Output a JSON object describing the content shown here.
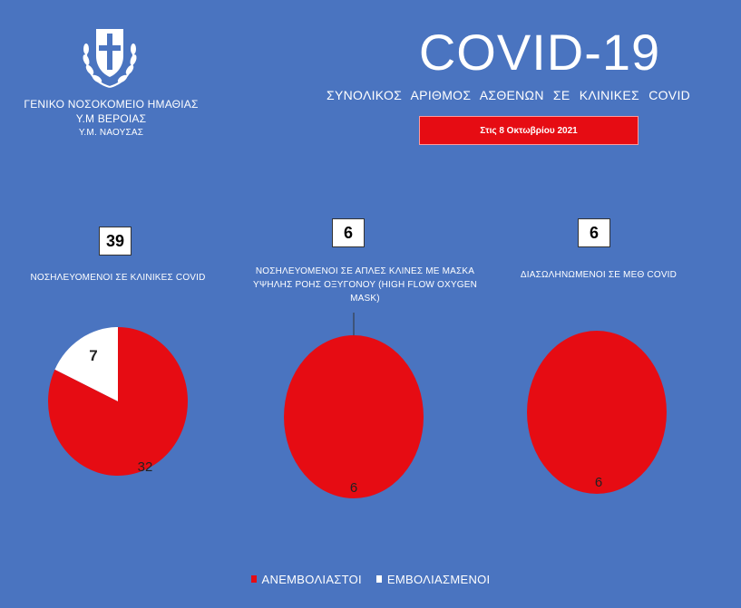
{
  "header": {
    "hospital_line1": "ΓΕΝΙΚΟ ΝΟΣΟΚΟΜΕΙΟ ΗΜΑΘΙΑΣ",
    "hospital_line2": "Υ.Μ ΒΕΡΟΙΑΣ",
    "hospital_line3": "Υ.Μ. ΝΑΟΥΣΑΣ",
    "title": "COVID-19",
    "subtitle": "ΣΥΝΟΛΙΚΟΣ ΑΡΙΘΜΟΣ ΑΣΘΕΝΩΝ   ΣΕ ΚΛΙΝΙΚΕΣ COVID",
    "date": "Στις 8 Οκτωβρίου 2021"
  },
  "colors": {
    "background": "#4a74c0",
    "unvaccinated": "#e60c13",
    "vaccinated": "#ffffff"
  },
  "emblem_icon": "greek-coat-of-arms-icon",
  "chart_data": [
    {
      "type": "pie",
      "total": "39",
      "label": "ΝΟΣΗΛΕΥΟΜΕΝΟΙ ΣΕ ΚΛΙΝΙΚΕΣ COVID",
      "categories": [
        "ΑΝΕΜΒΟΛΙΑΣΤΟΙ",
        "ΕΜΒΟΛΙΑΣΜΕΝΟΙ"
      ],
      "values": [
        32,
        7
      ]
    },
    {
      "type": "pie",
      "total": "6",
      "label": "ΝΟΣΗΛΕΥΟΜΕΝΟΙ ΣΕ ΑΠΛΕΣ ΚΛΙΝΕΣ ΜΕ ΜΑΣΚΑ ΥΨΗΛΗΣ ΡΟΗΣ ΟΞΥΓΟΝΟΥ (HIGH FLOW OXYGEN MASK)",
      "categories": [
        "ΑΝΕΜΒΟΛΙΑΣΤΟΙ",
        "ΕΜΒΟΛΙΑΣΜΕΝΟΙ"
      ],
      "values": [
        6,
        0
      ]
    },
    {
      "type": "pie",
      "total": "6",
      "label": "ΔΙΑΣΩΛΗΝΩΜΕΝΟΙ ΣΕ ΜΕΘ COVID",
      "categories": [
        "ΑΝΕΜΒΟΛΙΑΣΤΟΙ",
        "ΕΜΒΟΛΙΑΣΜΕΝΟΙ"
      ],
      "values": [
        6,
        0
      ]
    }
  ],
  "legend": {
    "placement": "bottom",
    "items": [
      "ΑΝΕΜΒΟΛΙΑΣΤΟΙ",
      "ΕΜΒΟΛΙΑΣΜΕΝΟΙ"
    ]
  }
}
